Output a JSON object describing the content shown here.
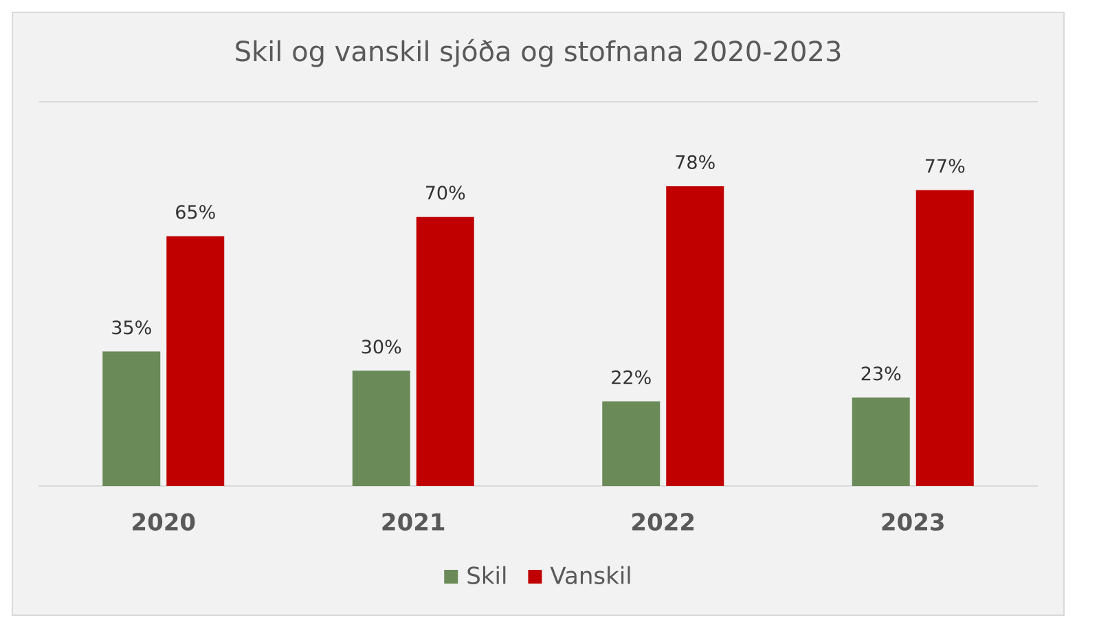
{
  "chart_data": {
    "type": "bar",
    "title": "Skil og vanskil sjóða og stofnana 2020-2023",
    "categories": [
      "2020",
      "2021",
      "2022",
      "2023"
    ],
    "series": [
      {
        "name": "Skil",
        "color": "#6a8a58",
        "values": [
          35,
          30,
          22,
          23
        ],
        "value_labels": [
          "35%",
          "30%",
          "22%",
          "23%"
        ]
      },
      {
        "name": "Vanskil",
        "color": "#c00000",
        "values": [
          65,
          70,
          78,
          77
        ],
        "value_labels": [
          "65%",
          "70%",
          "78%",
          "77%"
        ]
      }
    ],
    "ylim": [
      0,
      100
    ],
    "legend": "bottom"
  }
}
